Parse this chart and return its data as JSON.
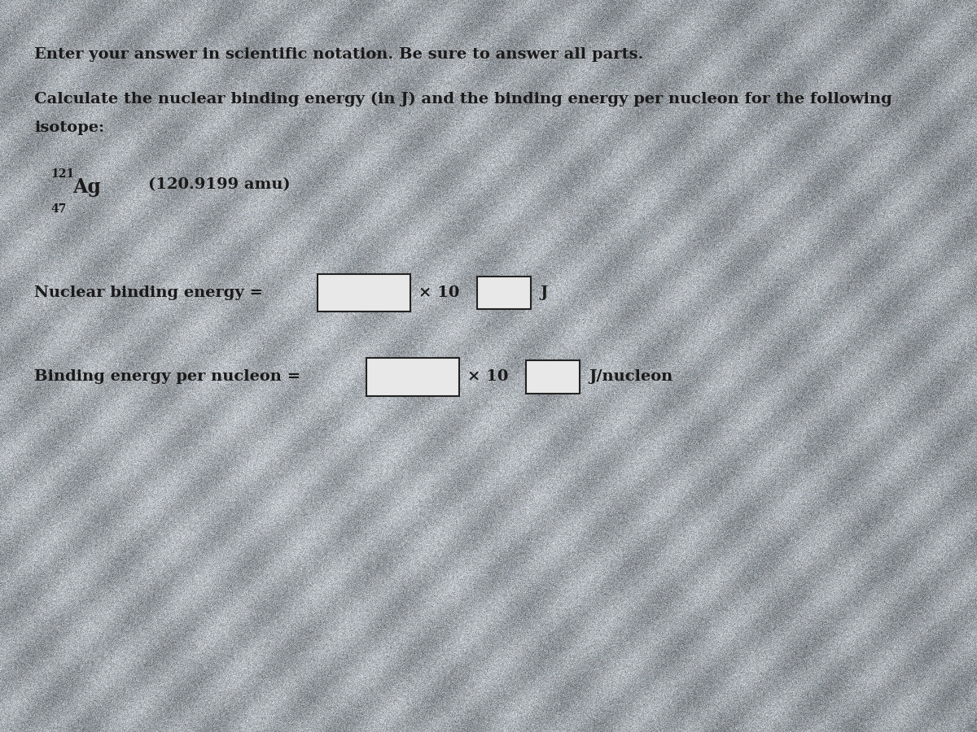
{
  "background_color_base": "#a8a8a8",
  "title_line1": "Enter your answer in scientific notation. Be sure to answer all parts.",
  "title_line2": "Calculate the nuclear binding energy (in J) and the binding energy per nucleon for the following",
  "title_line3": "isotope:",
  "isotope_mass_number": "121",
  "isotope_symbol": "Ag",
  "isotope_atomic_number": "47",
  "isotope_mass": "(120.9199 amu)",
  "label1": "Nuclear binding energy =",
  "times1": "× 10",
  "unit1": "J",
  "label2": "Binding energy per nucleon =",
  "times2": "× 10",
  "unit2": "J/nucleon",
  "text_color": "#1a1a1a",
  "box_color": "#e8e8e8",
  "box_border_color": "#222222",
  "font_size_body": 14,
  "font_size_isotope": 15,
  "font_size_superscript": 10
}
